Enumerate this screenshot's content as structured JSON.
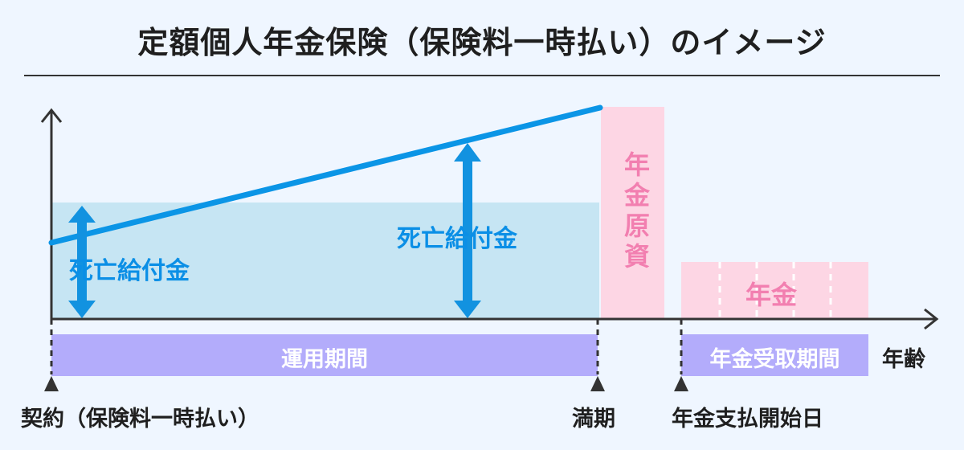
{
  "title": "定額個人年金保険（保険料一時払い）のイメージ",
  "labels": {
    "death_benefit_left": "死亡給付金",
    "death_benefit_right": "死亡給付金",
    "annuity_principal": "年金原資",
    "annuity": "年金",
    "operation_period": "運用期間",
    "annuity_receipt_period": "年金受取期間",
    "x_axis": "年齢",
    "contract": "契約（保険料一時払い）",
    "maturity": "満期",
    "annuity_payment_start": "年金支払開始日"
  },
  "colors": {
    "background": "#eff6ff",
    "blue_line": "#0b95e6",
    "blue_arrow": "#1292e0",
    "light_blue_fill": "#c6e5f3",
    "pink_fill": "#fdd6e4",
    "pink_text": "#f27fb0",
    "purple_bar": "#b3acfb",
    "axis": "#333333"
  },
  "icons": [
    "triangle-marker-icon",
    "double-arrow-icon",
    "axis-arrow-icon"
  ]
}
